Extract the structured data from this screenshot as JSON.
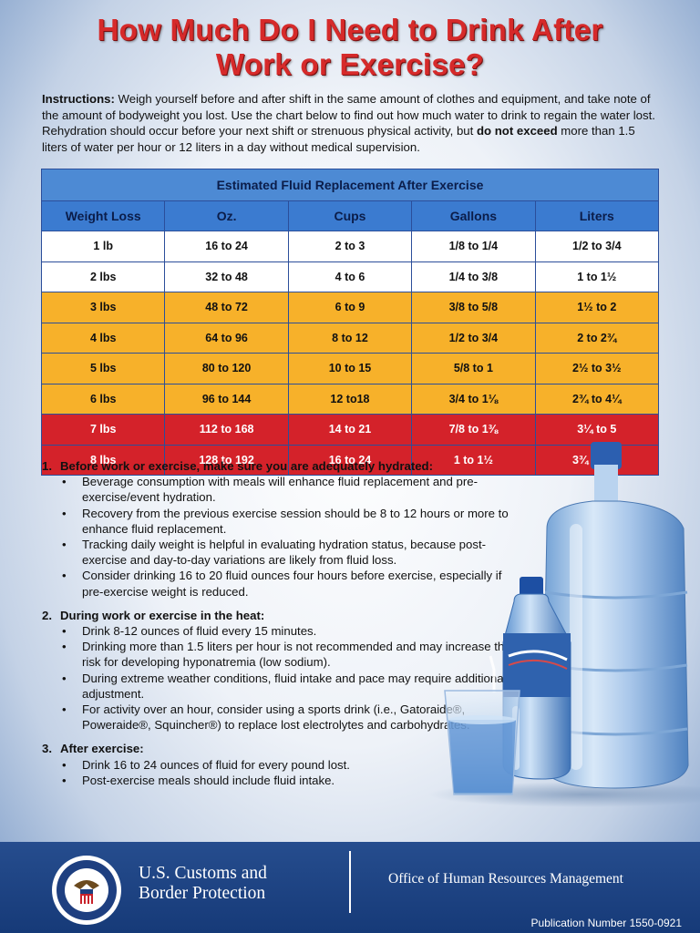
{
  "title": {
    "line1": "How Much Do I Need to Drink After",
    "line2": "Work or Exercise?"
  },
  "instructions": {
    "label": "Instructions:",
    "text1": " Weigh yourself before and after shift in the same amount of clothes and equipment, and take note of  the amount of bodyweight you lost. Use the chart below to find out how much water to drink to regain the water lost. Rehydration should occur before your next shift or strenuous physical activity, but ",
    "emphasis": "do not exceed",
    "text2": " more than 1.5 liters of water per hour or 12 liters in a day without medical supervision."
  },
  "table": {
    "caption": "Estimated Fluid Replacement After Exercise",
    "headers": [
      "Weight Loss",
      "Oz.",
      "Cups",
      "Gallons",
      "Liters"
    ],
    "rows": [
      {
        "band": "white",
        "cells": [
          "1 lb",
          "16 to 24",
          "2 to 3",
          "1/8 to 1/4",
          "1/2 to 3/4"
        ]
      },
      {
        "band": "white",
        "cells": [
          "2 lbs",
          "32 to 48",
          "4 to 6",
          "1/4 to 3/8",
          "1 to 1½"
        ]
      },
      {
        "band": "orange",
        "cells": [
          "3 lbs",
          "48 to 72",
          "6 to 9",
          "3/8 to 5/8",
          "1½ to 2"
        ]
      },
      {
        "band": "orange",
        "cells": [
          "4 lbs",
          "64 to 96",
          "8 to 12",
          "1/2 to 3/4",
          "2 to 2¾"
        ]
      },
      {
        "band": "orange",
        "cells": [
          "5 lbs",
          "80 to 120",
          "10 to 15",
          "5/8 to 1",
          "2½ to 3½"
        ]
      },
      {
        "band": "orange",
        "cells": [
          "6 lbs",
          "96 to 144",
          "12 to18",
          "3/4 to 1⅛",
          "2¾ to 4¼"
        ]
      },
      {
        "band": "red",
        "cells": [
          "7 lbs",
          "112 to 168",
          "14 to 21",
          "7/8 to 1⅜",
          "3¼ to 5"
        ]
      },
      {
        "band": "red",
        "cells": [
          "8 lbs",
          "128 to 192",
          "16 to 24",
          "1 to 1½",
          "3¾ to 5½"
        ]
      }
    ]
  },
  "sections": [
    {
      "num": "1.",
      "title": "Before work or exercise, make sure you are adequately hydrated:",
      "bullets": [
        "Beverage consumption with meals will enhance fluid replacement and pre-exercise/event hydration.",
        "Recovery from the previous exercise session should be 8 to 12 hours or more to enhance fluid replacement.",
        "Tracking daily weight is helpful in evaluating hydration status, because post-exercise and day-to-day variations are likely from fluid loss.",
        "Consider drinking 16 to 20 fluid ounces four hours before exercise, especially if pre-exercise weight is reduced."
      ]
    },
    {
      "num": "2.",
      "title": "During work or exercise in the heat:",
      "bullets": [
        "Drink 8-12 ounces of fluid every 15 minutes.",
        "Drinking more than 1.5 liters per hour is not recommended and may increase the risk for developing hyponatremia (low sodium).",
        "During extreme weather conditions, fluid intake and pace may require additional adjustment.",
        "For activity over an hour, consider using a sports drink (i.e., Gatoraide®, Poweraide®, Squincher®) to replace lost electrolytes and carbohydrates."
      ]
    },
    {
      "num": "3.",
      "title": "After exercise:",
      "bullets": [
        "Drink 16 to 24 ounces of fluid for every pound lost.",
        "Post-exercise meals should include fluid intake."
      ]
    }
  ],
  "footer": {
    "agency_line1": "U.S. Customs and",
    "agency_line2": "Border Protection",
    "office": "Office of Human Resources Management",
    "publication": "Publication Number 1550-0921"
  },
  "colors": {
    "title": "#d62a2a",
    "header_blue": "#3b7bd0",
    "band_orange": "#f7b12a",
    "band_red": "#d4222a",
    "footer_navy": "#163a78"
  }
}
